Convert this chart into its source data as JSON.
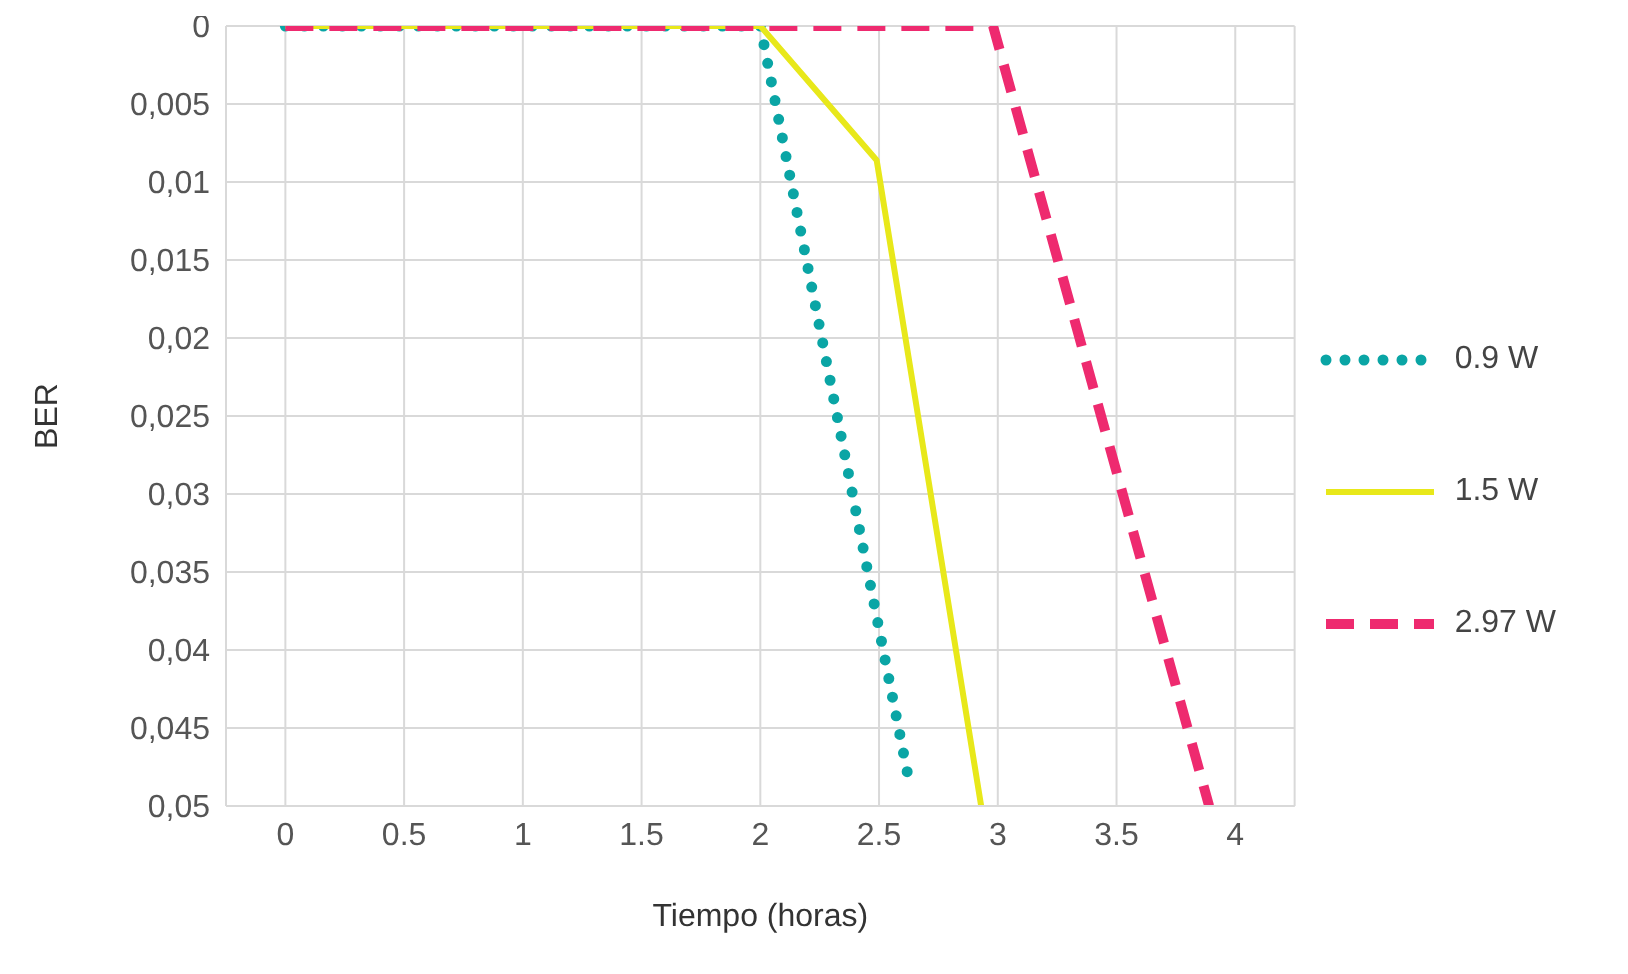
{
  "chart_data": {
    "type": "line",
    "xlabel": "Tiempo (horas)",
    "ylabel": "BER",
    "xlim": [
      -0.25,
      4.25
    ],
    "xticks": [
      0,
      0.5,
      1,
      1.5,
      2,
      2.5,
      3,
      3.5,
      4
    ],
    "ylim": [
      0.05,
      0
    ],
    "yticks": [
      {
        "value": 0,
        "label": "0"
      },
      {
        "value": 0.005,
        "label": "0,005"
      },
      {
        "value": 0.01,
        "label": "0,01"
      },
      {
        "value": 0.015,
        "label": "0,015"
      },
      {
        "value": 0.02,
        "label": "0,02"
      },
      {
        "value": 0.025,
        "label": "0,025"
      },
      {
        "value": 0.03,
        "label": "0,03"
      },
      {
        "value": 0.035,
        "label": "0,035"
      },
      {
        "value": 0.04,
        "label": "0,04"
      },
      {
        "value": 0.045,
        "label": "0,045"
      },
      {
        "value": 0.05,
        "label": "0,05"
      }
    ],
    "grid": true,
    "legend": "right",
    "marker": "none",
    "series": [
      {
        "name": "0.9 W",
        "color": "#0aa5a5",
        "line_style": "dotted",
        "x": [
          0,
          2.0,
          2.63
        ],
        "values": [
          0,
          0,
          0.0487
        ]
      },
      {
        "name": "1.5 W",
        "color": "#e8e81a",
        "line_style": "solid",
        "x": [
          0,
          2.0,
          2.49,
          2.93
        ],
        "values": [
          0,
          0,
          0.0086,
          0.05
        ]
      },
      {
        "name": "2.97 W",
        "color": "#ee2a6f",
        "line_style": "dashed",
        "x": [
          0,
          2.98,
          3.89
        ],
        "values": [
          0,
          0,
          0.05
        ]
      }
    ]
  }
}
